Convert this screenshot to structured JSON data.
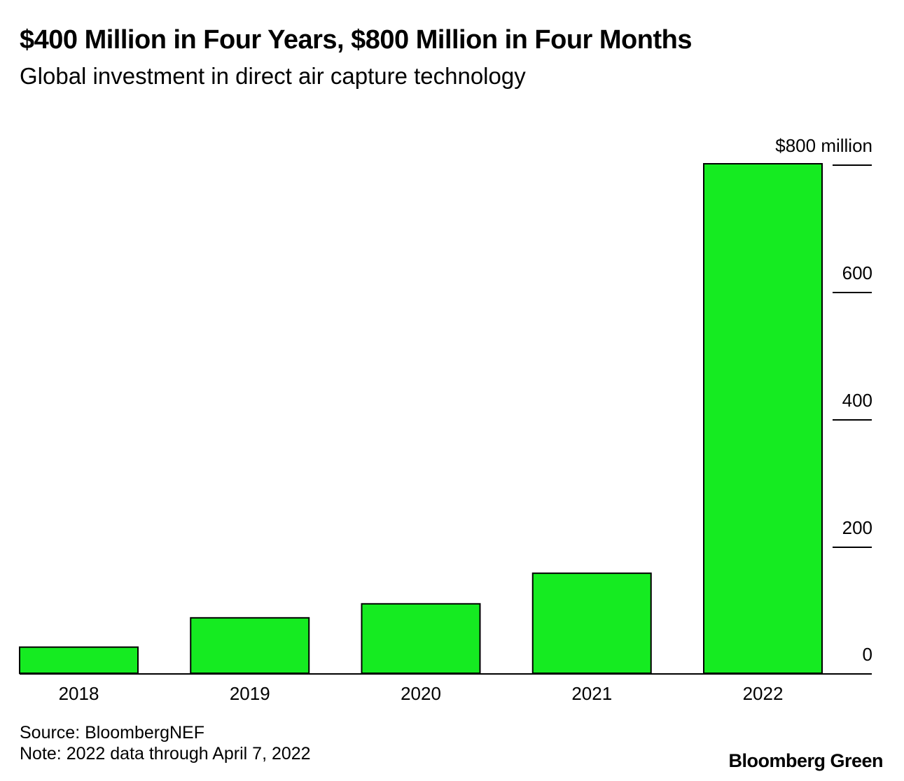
{
  "header": {
    "title": "$400 Million in Four Years, $800 Million in Four Months",
    "subtitle": "Global investment in direct air capture technology"
  },
  "footer": {
    "source": "Source: BloombergNEF",
    "note": "Note: 2022 data through April 7, 2022",
    "brand": "Bloomberg Green"
  },
  "colors": {
    "bar_fill": "#15eb21",
    "bar_stroke": "#000000"
  },
  "chart_data": {
    "type": "bar",
    "title": "$400 Million in Four Years, $800 Million in Four Months",
    "subtitle": "Global investment in direct air capture technology",
    "categories": [
      "2018",
      "2019",
      "2020",
      "2021",
      "2022"
    ],
    "values": [
      41,
      87,
      109,
      157,
      800
    ],
    "ylim": [
      0,
      800
    ],
    "yticks": [
      0,
      200,
      400,
      600,
      800
    ],
    "ytick_labels": [
      "0",
      "200",
      "400",
      "600",
      "$800 million"
    ],
    "y_axis_position": "right",
    "grid": false
  }
}
